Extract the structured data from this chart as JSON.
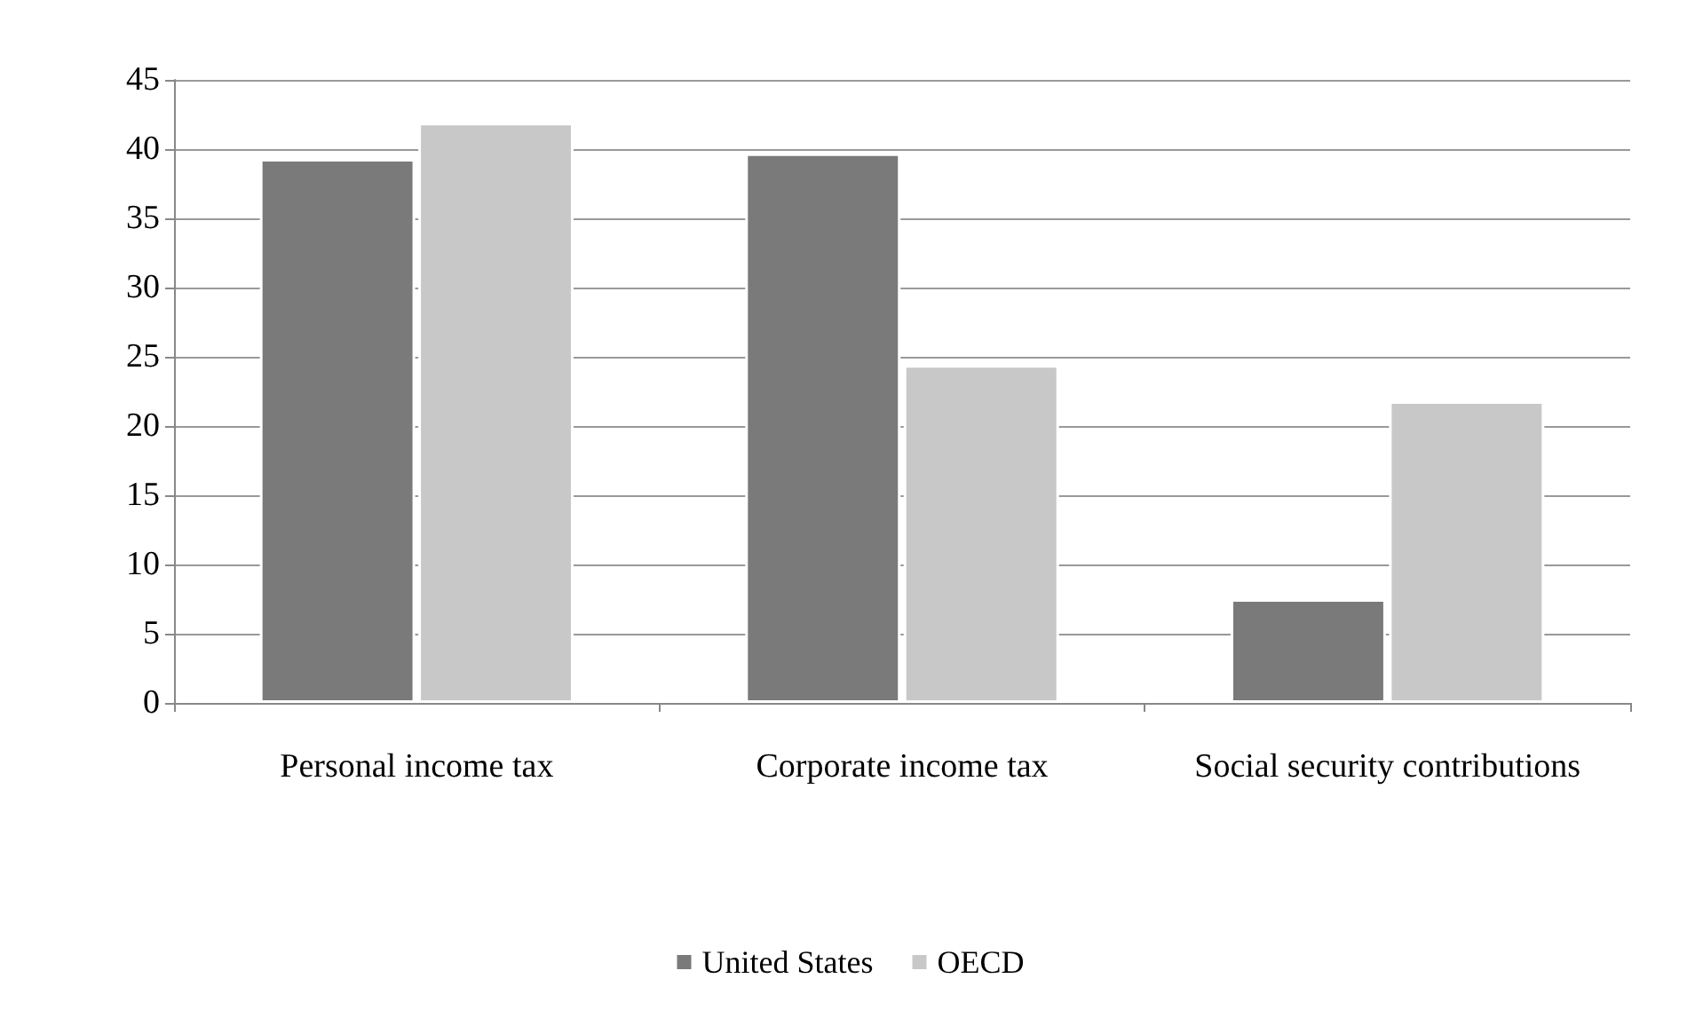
{
  "chart_data": {
    "type": "bar",
    "categories": [
      "Personal income tax",
      "Corporate income tax",
      "Social security contributions"
    ],
    "series": [
      {
        "name": "United States",
        "color": "#7a7a7a",
        "values": [
          39.3,
          39.7,
          7.5
        ]
      },
      {
        "name": "OECD",
        "color": "#c8c8c8",
        "values": [
          41.9,
          24.4,
          21.8
        ]
      }
    ],
    "ylim": [
      0,
      45
    ],
    "yticks": [
      0,
      5,
      10,
      15,
      20,
      25,
      30,
      35,
      40,
      45
    ],
    "grid": "y",
    "legend": "bottom"
  }
}
